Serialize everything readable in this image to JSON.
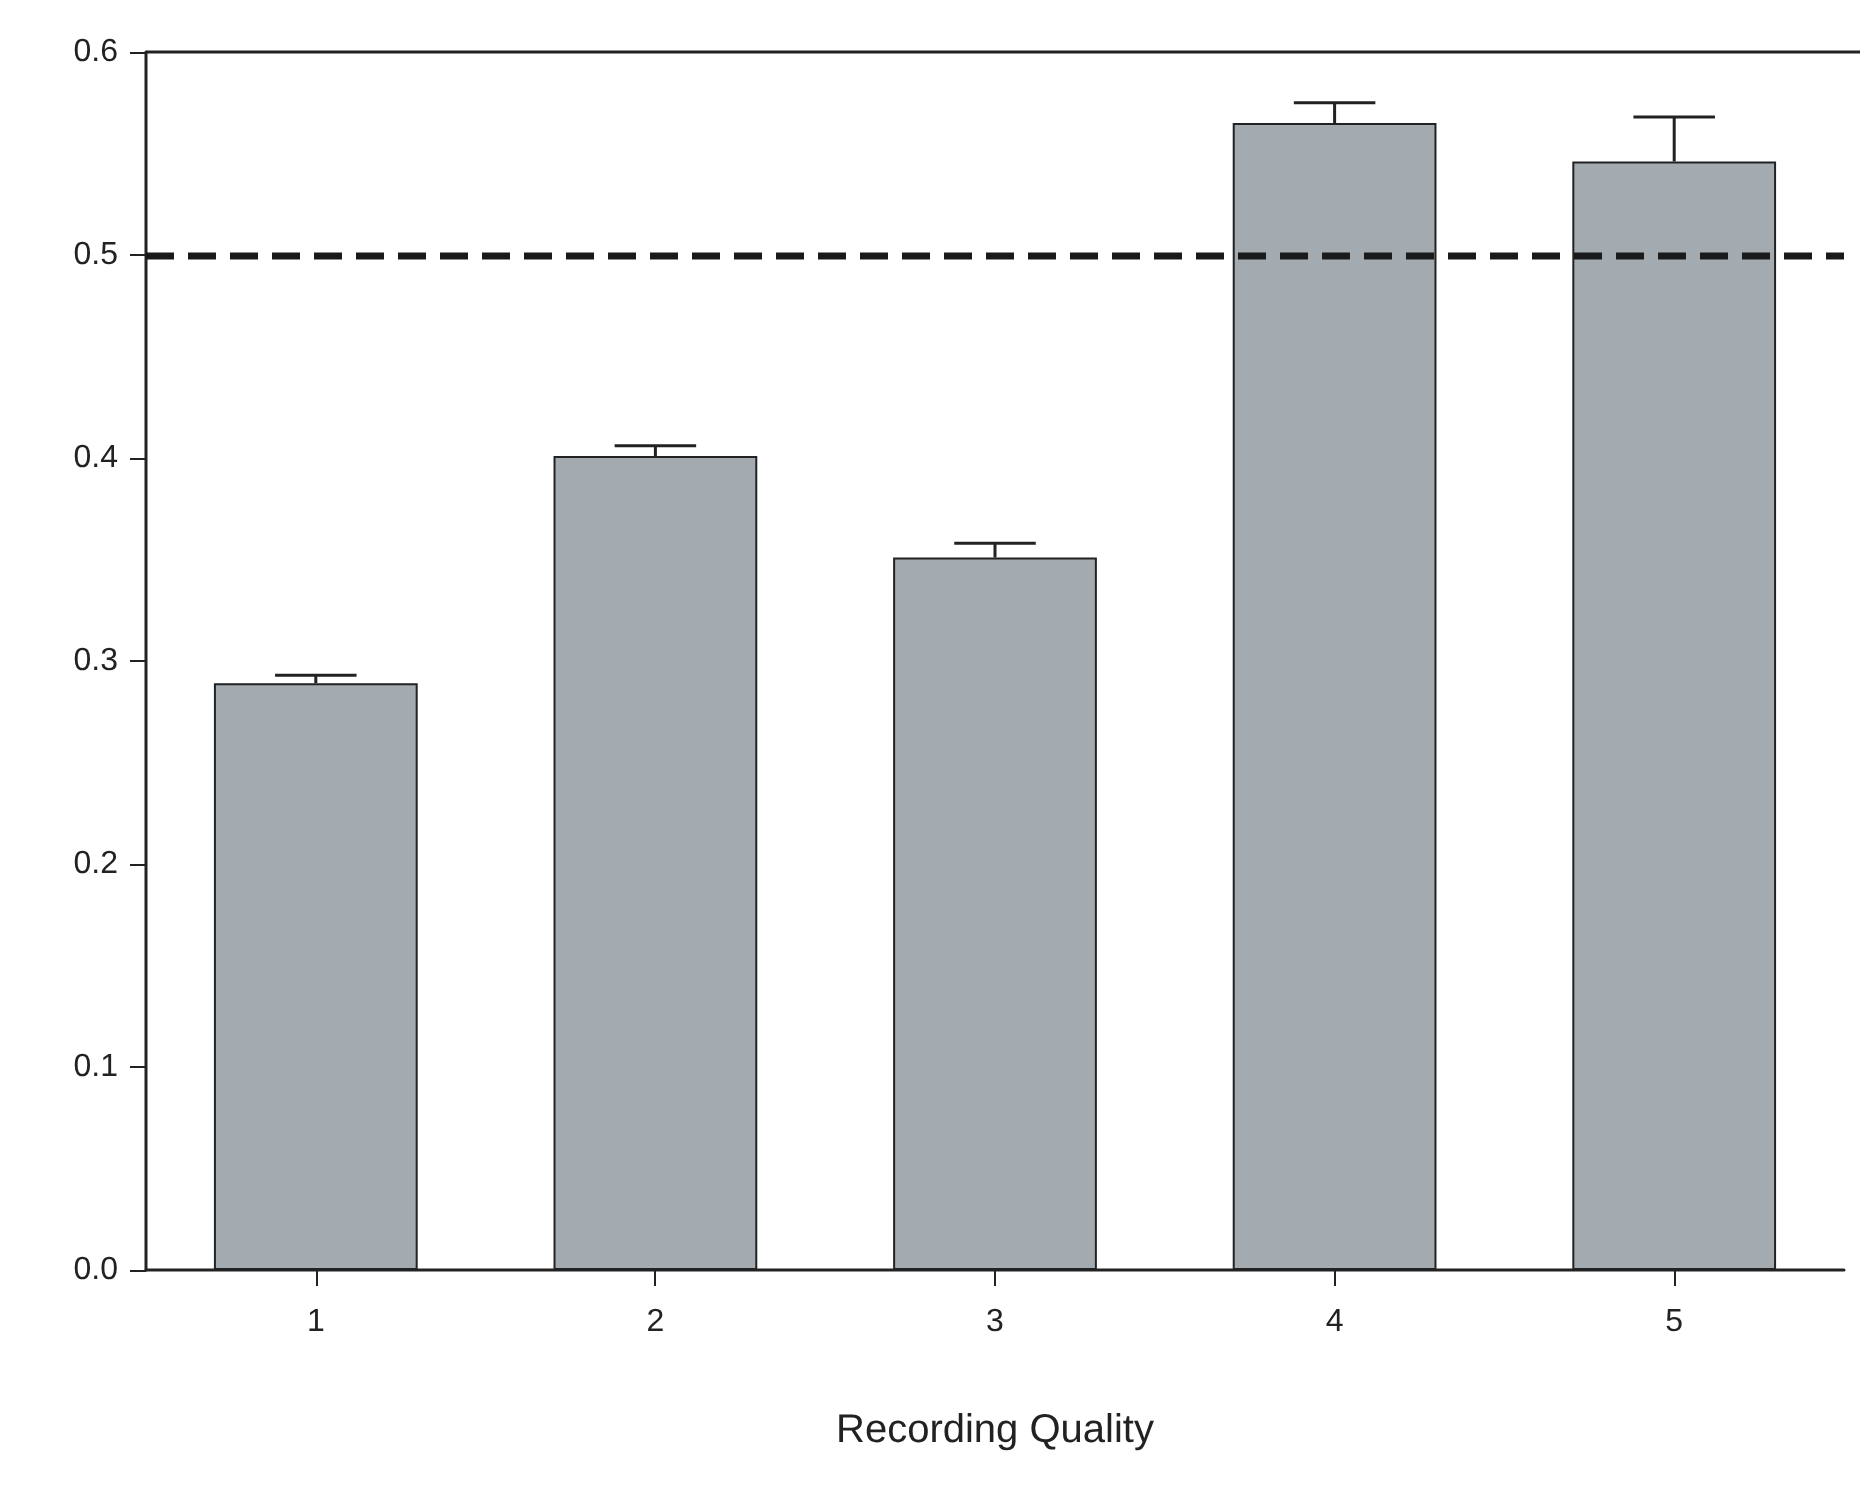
{
  "chart_data": {
    "type": "bar",
    "xlabel": "Recording Quality",
    "categories": [
      "1",
      "2",
      "3",
      "4",
      "5"
    ],
    "values": [
      0.289,
      0.401,
      0.351,
      0.565,
      0.546
    ],
    "errors": [
      [
        0.289,
        0.293
      ],
      [
        0.401,
        0.406
      ],
      [
        0.351,
        0.358
      ],
      [
        0.565,
        0.575
      ],
      [
        0.546,
        0.568
      ]
    ],
    "color": "#a3abb0",
    "ylim": [
      0,
      0.6
    ],
    "yticks": [
      {
        "value": 0,
        "label": "0.0"
      },
      {
        "value": 0.1,
        "label": "0.1"
      },
      {
        "value": 0.2,
        "label": "0.2"
      },
      {
        "value": 0.3,
        "label": "0.3"
      },
      {
        "value": 0.4,
        "label": "0.4"
      },
      {
        "value": 0.5,
        "label": "0.5"
      },
      {
        "value": 0.6,
        "label": "0.6"
      }
    ],
    "ref_lines": [
      {
        "axis": "y",
        "value": 0.5,
        "line_style": "dashed",
        "color": "#1a1a1a"
      }
    ],
    "grid": false
  }
}
